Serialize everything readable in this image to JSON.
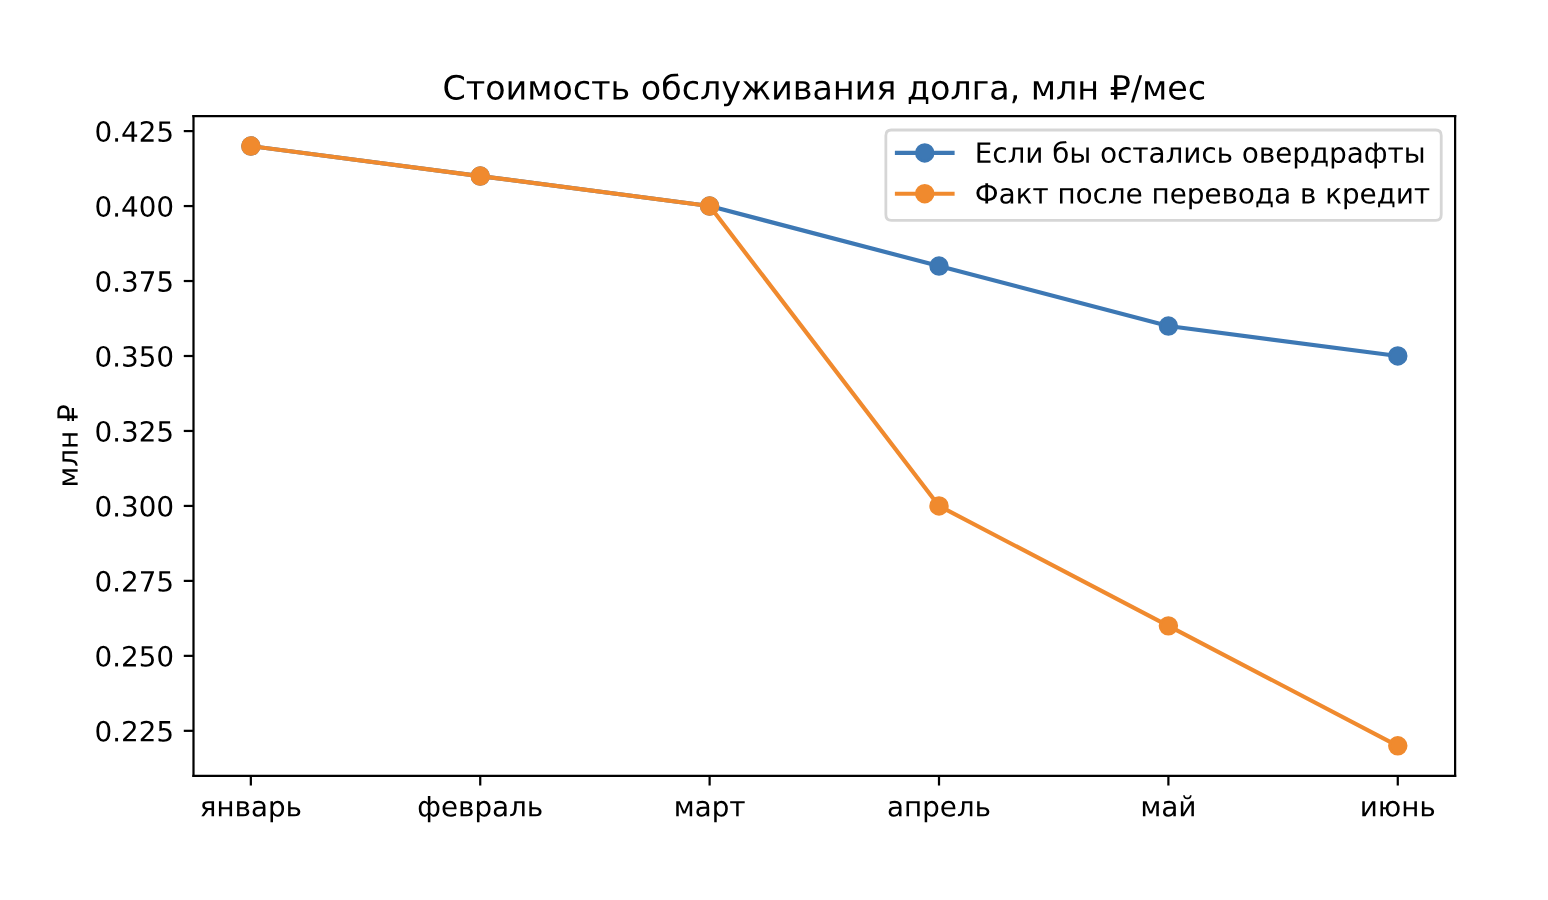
{
  "chart_data": {
    "type": "line",
    "title": "Стоимость обслуживания долга, млн ₽/мес",
    "ylabel": "млн ₽",
    "categories": [
      "январь",
      "февраль",
      "март",
      "апрель",
      "май",
      "июнь"
    ],
    "series": [
      {
        "name": "Если бы остались овердрафты",
        "color": "#3d78b4",
        "values": [
          0.42,
          0.41,
          0.4,
          0.38,
          0.36,
          0.35
        ]
      },
      {
        "name": "Факт после перевода в кредит",
        "color": "#f08a2e",
        "values": [
          0.42,
          0.41,
          0.4,
          0.3,
          0.26,
          0.22
        ]
      }
    ],
    "ylim": [
      0.21,
      0.43
    ],
    "yticks": [
      0.225,
      {
        "value": 0.25,
        "label": "0.250"
      },
      0.275,
      {
        "value": 0.3,
        "label": "0.300"
      },
      0.325,
      {
        "value": 0.35,
        "label": "0.350"
      },
      0.375,
      {
        "value": 0.4,
        "label": "0.400"
      },
      0.425
    ],
    "marker": "circle",
    "line_style": "solid",
    "legend": "top right",
    "grid": false
  }
}
